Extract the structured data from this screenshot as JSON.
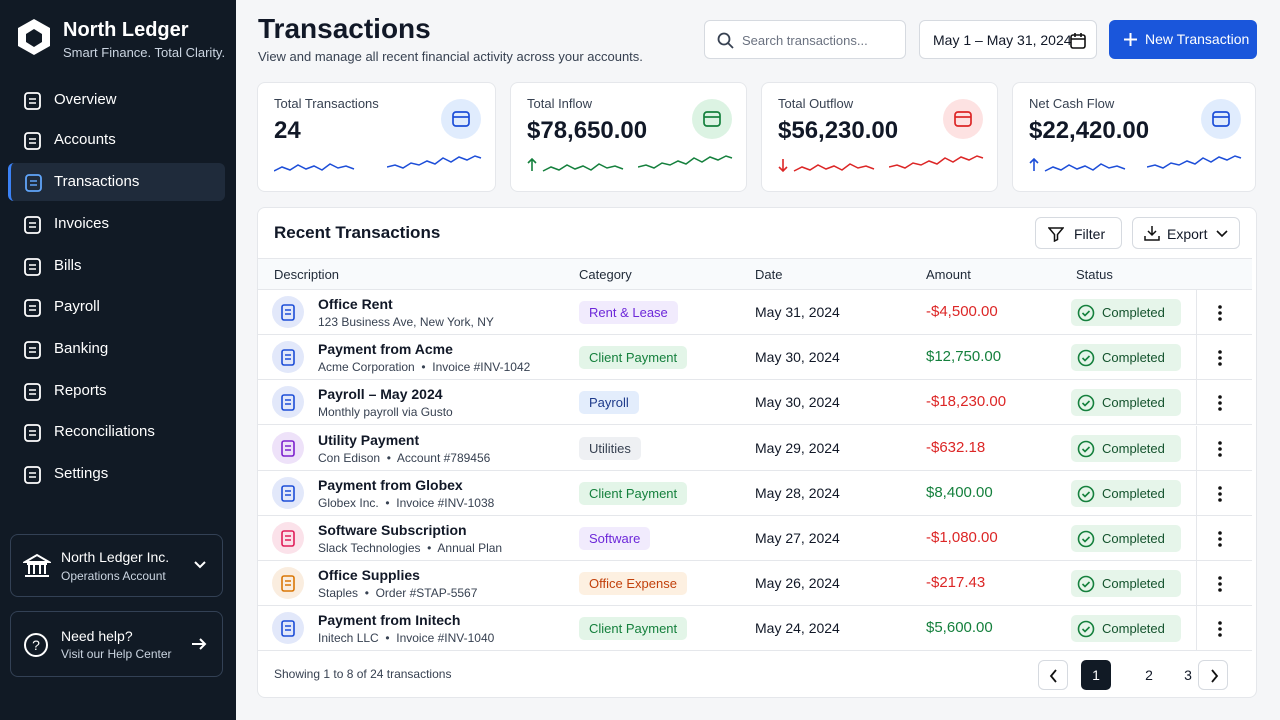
{
  "sidebar": {
    "brand": {
      "name": "North Ledger",
      "tagline": "Smart Finance. Total Clarity."
    },
    "nav": [
      {
        "label": "Overview"
      },
      {
        "label": "Accounts"
      },
      {
        "label": "Transactions",
        "active": true
      },
      {
        "label": "Invoices"
      },
      {
        "label": "Bills"
      },
      {
        "label": "Payroll"
      },
      {
        "label": "Banking"
      },
      {
        "label": "Reports"
      },
      {
        "label": "Reconciliations"
      },
      {
        "label": "Settings"
      }
    ],
    "account": {
      "name": "North Ledger Inc.",
      "subtitle": "Operations Account"
    },
    "help": {
      "title": "Need help?",
      "link": "Visit our Help Center"
    }
  },
  "header": {
    "title": "Transactions",
    "subtitle": "View and manage all recent financial activity across your accounts.",
    "search_placeholder": "Search transactions...",
    "date_range": "May 1 – May 31, 2024",
    "new_button": "New Transaction"
  },
  "stats": [
    {
      "label": "Total Transactions",
      "value": "24",
      "color": "#1d4ed8",
      "tint": "#e0ecfd"
    },
    {
      "label": "Total Inflow",
      "value": "$78,650.00",
      "color": "#15803d",
      "tint": "#dcf3e3"
    },
    {
      "label": "Total Outflow",
      "value": "$56,230.00",
      "color": "#dc2626",
      "tint": "#fde2e2"
    },
    {
      "label": "Net Cash Flow",
      "value": "$22,420.00",
      "color": "#1d4ed8",
      "tint": "#e0ecfd"
    }
  ],
  "table": {
    "title": "Recent Transactions",
    "filter": "Filter",
    "export": "Export",
    "columns": [
      "Description",
      "Category",
      "Date",
      "Amount",
      "Status"
    ],
    "rows": [
      {
        "description": "Office Rent",
        "detail": "123 Business Ave, New York, NY",
        "category": "Rent & Lease",
        "category_color": "#6d28d9",
        "category_bg": "#f1ebfd",
        "icon_color": "#1d4ed8",
        "date": "May 31, 2024",
        "amount": "-$4,500.00",
        "status": "Completed"
      },
      {
        "description": "Payment from Acme",
        "detail": "Acme Corporation  •  Invoice #INV-1042",
        "category": "Client Payment",
        "category_color": "#15803d",
        "category_bg": "#e3f5e8",
        "icon_color": "#1d4ed8",
        "date": "May 30, 2024",
        "amount": "$12,750.00",
        "status": "Completed"
      },
      {
        "description": "Payroll – May 2024",
        "detail": "Monthly payroll via Gusto",
        "category": "Payroll",
        "category_color": "#1e3a8a",
        "category_bg": "#e3edfc",
        "icon_color": "#1d4ed8",
        "date": "May 30, 2024",
        "amount": "-$18,230.00",
        "status": "Completed"
      },
      {
        "description": "Utility Payment",
        "detail": "Con Edison  •  Account #789456",
        "category": "Utilities",
        "category_color": "#374151",
        "category_bg": "#eef0f3",
        "icon_color": "#7e22ce",
        "date": "May 29, 2024",
        "amount": "-$632.18",
        "status": "Completed"
      },
      {
        "description": "Payment from Globex",
        "detail": "Globex Inc.  •  Invoice #INV-1038",
        "category": "Client Payment",
        "category_color": "#15803d",
        "category_bg": "#e3f5e8",
        "icon_color": "#1d4ed8",
        "date": "May 28, 2024",
        "amount": "$8,400.00",
        "status": "Completed"
      },
      {
        "description": "Software Subscription",
        "detail": "Slack Technologies  •  Annual Plan",
        "category": "Software",
        "category_color": "#6d28d9",
        "category_bg": "#f1ebfd",
        "icon_color": "#e01e5a",
        "date": "May 27, 2024",
        "amount": "-$1,080.00",
        "status": "Completed"
      },
      {
        "description": "Office Supplies",
        "detail": "Staples  •  Order #STAP-5567",
        "category": "Office Expense",
        "category_color": "#c2410c",
        "category_bg": "#fdf0e1",
        "icon_color": "#d97706",
        "date": "May 26, 2024",
        "amount": "-$217.43",
        "status": "Completed"
      },
      {
        "description": "Payment from Initech",
        "detail": "Initech LLC  •  Invoice #INV-1040",
        "category": "Client Payment",
        "category_color": "#15803d",
        "category_bg": "#e3f5e8",
        "icon_color": "#1d4ed8",
        "date": "May 24, 2024",
        "amount": "$5,600.00",
        "status": "Completed"
      }
    ],
    "footer": "Showing 1 to 8 of 24 transactions",
    "pages": [
      {
        "label": "1",
        "active": true
      },
      {
        "label": "2"
      },
      {
        "label": "3"
      }
    ]
  }
}
